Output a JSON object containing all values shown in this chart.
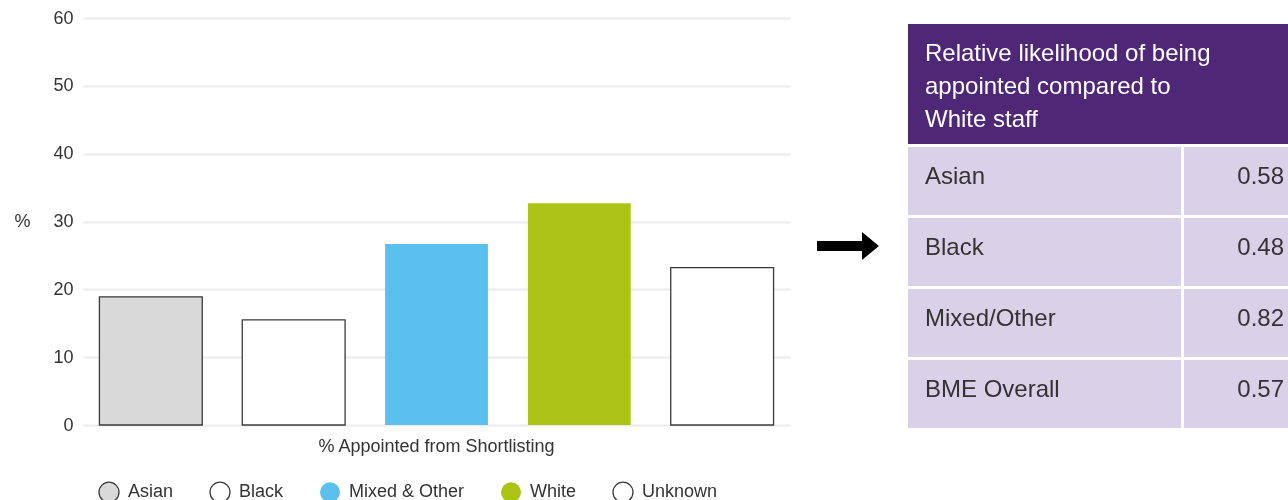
{
  "chart_data": [
    {
      "type": "bar",
      "ylabel": "%",
      "categories": [
        "% Appointed from Shortlisting"
      ],
      "series": [
        {
          "name": "Asian",
          "color": "#d9d9d9",
          "values": [
            18.9
          ]
        },
        {
          "name": "Black",
          "color": "#ffffff",
          "values": [
            15.5
          ]
        },
        {
          "name": "Mixed & Other",
          "color": "#5bc0ed",
          "values": [
            26.7
          ]
        },
        {
          "name": "White",
          "color": "#abc315",
          "values": [
            32.7
          ]
        },
        {
          "name": "Unknown",
          "color": "#ffffff",
          "values": [
            23.2
          ]
        }
      ],
      "ylim": [
        0,
        60
      ],
      "yticks": [
        0,
        10,
        20,
        30,
        40,
        50,
        60
      ],
      "grid": "y",
      "legend": "bottom"
    },
    {
      "type": "other",
      "title": "Relative likelihood of being appointed compared to White staff",
      "categories": [
        "Asian",
        "Black",
        "Mixed/Other",
        "BME Overall"
      ],
      "values": [
        0.58,
        0.48,
        0.82,
        0.57
      ],
      "data_labels": true
    }
  ]
}
